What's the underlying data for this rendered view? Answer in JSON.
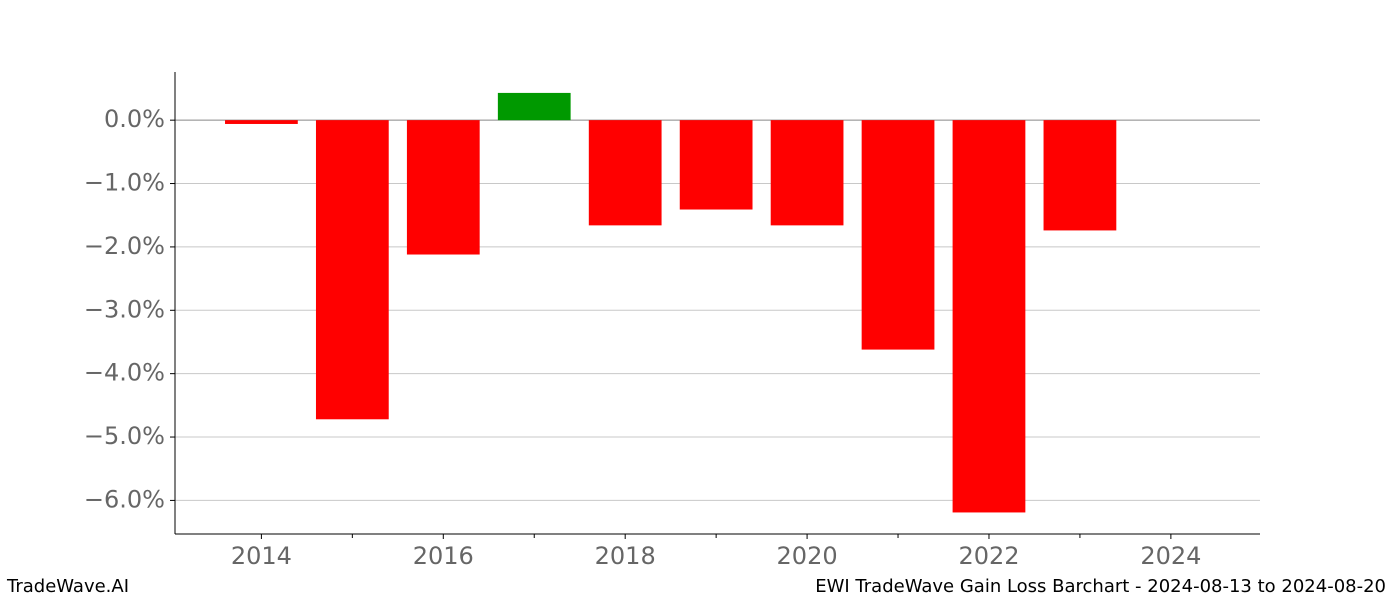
{
  "chart_data": {
    "type": "bar",
    "x": [
      2014,
      2015,
      2016,
      2017,
      2018,
      2019,
      2020,
      2021,
      2022,
      2023
    ],
    "values": [
      -0.06,
      -4.72,
      -2.12,
      0.43,
      -1.66,
      -1.41,
      -1.66,
      -3.62,
      -6.19,
      -1.74
    ],
    "colors": [
      "#ff0000",
      "#ff0000",
      "#ff0000",
      "#009900",
      "#ff0000",
      "#ff0000",
      "#ff0000",
      "#ff0000",
      "#ff0000",
      "#ff0000"
    ],
    "bar_width": 0.8,
    "xlim": [
      2013.05,
      2024.98
    ],
    "xticks": [
      2014,
      2016,
      2018,
      2020,
      2022,
      2024
    ],
    "xticks_minor": [
      2015,
      2017,
      2019,
      2021,
      2023
    ],
    "ylim": [
      -6.53,
      0.76
    ],
    "yticks": [
      {
        "value": 0,
        "label": "0.0%"
      },
      {
        "value": -1,
        "label": "−1.0%"
      },
      {
        "value": -2,
        "label": "−2.0%"
      },
      {
        "value": -3,
        "label": "−3.0%"
      },
      {
        "value": -4,
        "label": "−4.0%"
      },
      {
        "value": -5,
        "label": "−5.0%"
      },
      {
        "value": -6,
        "label": "−6.0%"
      }
    ],
    "grid": true,
    "footer_left": "TradeWave.AI",
    "footer_right": "EWI TradeWave Gain Loss Barchart - 2024-08-13 to 2024-08-20"
  }
}
